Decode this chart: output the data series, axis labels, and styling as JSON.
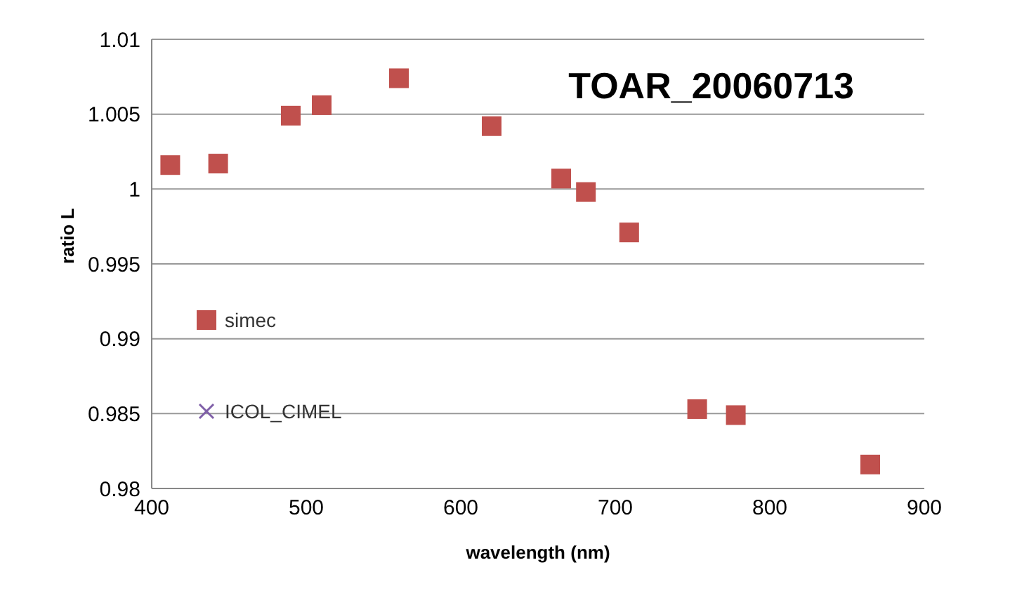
{
  "chart_data": {
    "type": "scatter",
    "title": "TOAR_20060713",
    "xlabel": "wavelength (nm)",
    "ylabel": "ratio L",
    "xlim": [
      400,
      900
    ],
    "xticks": [
      400,
      500,
      600,
      700,
      800,
      900
    ],
    "ylim": [
      0.98,
      1.01
    ],
    "yticks": [
      0.98,
      0.985,
      0.99,
      0.995,
      1,
      1.005,
      1.01
    ],
    "grid": "y",
    "legend": "left",
    "series": [
      {
        "name": "simec",
        "color": "#c0504d",
        "marker": "square",
        "x": [
          412,
          443,
          490,
          510,
          560,
          620,
          665,
          681,
          709,
          753,
          778,
          865
        ],
        "values": [
          1.0016,
          1.0017,
          1.0049,
          1.0056,
          1.0074,
          1.0042,
          1.0007,
          0.9998,
          0.9971,
          0.9853,
          0.9849,
          0.9816
        ]
      },
      {
        "name": "ICOL_CIMEL",
        "color": "#7f5fa8",
        "marker": "cross"
      }
    ]
  }
}
